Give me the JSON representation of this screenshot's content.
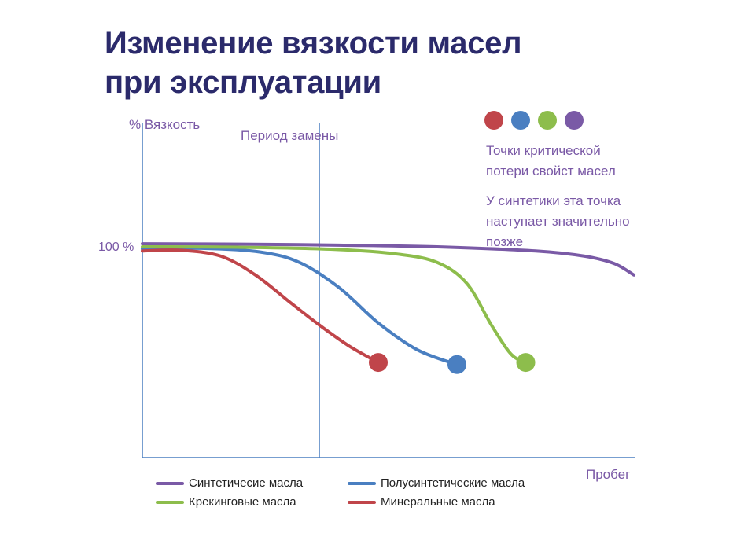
{
  "title_line1": "Изменение вязкости масел",
  "title_line2": "при эксплуатации",
  "colors": {
    "title": "#2b2a6b",
    "text": "#7a59a6",
    "axis": "#4a7fc1",
    "synthetic": "#7a5aa6",
    "semi_synthetic": "#4a7fc1",
    "cracking": "#8dbd4c",
    "mineral": "#c0454a"
  },
  "marker_dots": [
    "#c0454a",
    "#4a7fc1",
    "#8dbd4c",
    "#7a5aa6"
  ],
  "note1_line1": "Точки критической",
  "note1_line2": "потери свойст масел",
  "note2_line1": "У синтетики эта точка",
  "note2_line2": "наступает значительно",
  "note2_line3": "позже",
  "chart_data": {
    "type": "line",
    "ylabel": "% Вязкость",
    "xlabel": "Пробег",
    "y_tick": "100 %",
    "annotation": "Период замены",
    "legend": [
      {
        "name": "Синтетичесие масла",
        "color": "#7a5aa6"
      },
      {
        "name": "Полусинтетические масла",
        "color": "#4a7fc1"
      },
      {
        "name": "Крекинговые масла",
        "color": "#8dbd4c"
      },
      {
        "name": "Минеральные масла",
        "color": "#c0454a"
      }
    ],
    "series": [
      {
        "name": "Синтетичесие масла",
        "color": "#7a5aa6",
        "critical_point": false,
        "points": [
          [
            0,
            103
          ],
          [
            1,
            102.8
          ],
          [
            2,
            102.3
          ],
          [
            3,
            101.5
          ],
          [
            4,
            99.5
          ],
          [
            4.5,
            97
          ],
          [
            4.8,
            93.5
          ],
          [
            5,
            88
          ]
        ]
      },
      {
        "name": "Полусинтетические масла",
        "color": "#4a7fc1",
        "critical_point": true,
        "points": [
          [
            0,
            100.5
          ],
          [
            0.6,
            100.8
          ],
          [
            1.2,
            99
          ],
          [
            1.6,
            94
          ],
          [
            2,
            82
          ],
          [
            2.4,
            65
          ],
          [
            2.8,
            52
          ],
          [
            3.2,
            45
          ]
        ]
      },
      {
        "name": "Крекинговые масла",
        "color": "#8dbd4c",
        "critical_point": true,
        "points": [
          [
            0,
            101.5
          ],
          [
            1,
            101.3
          ],
          [
            2,
            100.2
          ],
          [
            2.6,
            98
          ],
          [
            3,
            94
          ],
          [
            3.3,
            84
          ],
          [
            3.55,
            64
          ],
          [
            3.75,
            50
          ],
          [
            3.9,
            46
          ]
        ]
      },
      {
        "name": "Минеральные масла",
        "color": "#c0454a",
        "critical_point": true,
        "points": [
          [
            0,
            99.5
          ],
          [
            0.4,
            99.8
          ],
          [
            0.8,
            97
          ],
          [
            1.15,
            88
          ],
          [
            1.5,
            75
          ],
          [
            1.8,
            64
          ],
          [
            2.1,
            54
          ],
          [
            2.4,
            46
          ]
        ]
      }
    ],
    "xlim": [
      0,
      5
    ],
    "ylim": [
      0,
      105
    ],
    "replacement_x": 1.8,
    "grid": false
  }
}
